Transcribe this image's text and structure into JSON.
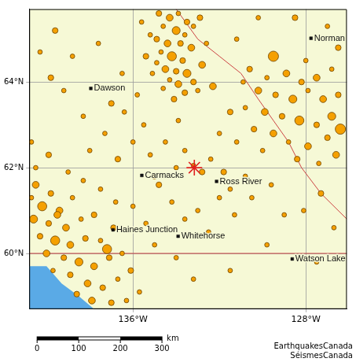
{
  "chart_data": {
    "type": "scatter",
    "xlim": [
      -140.8,
      -126.1
    ],
    "ylim": [
      58.7,
      65.7
    ],
    "xticks": [
      {
        "value": -136,
        "label": "136°W"
      },
      {
        "value": -128,
        "label": "128°W"
      }
    ],
    "yticks": [
      {
        "value": 60,
        "label": "60°N"
      },
      {
        "value": 62,
        "label": "62°N"
      },
      {
        "value": 64,
        "label": "64°N"
      }
    ],
    "grid": true,
    "tick_labels": true,
    "color": "#f5a000",
    "marker": "circle",
    "events": [
      [
        -134.8,
        65.6,
        2.5
      ],
      [
        -134.3,
        65.5,
        3
      ],
      [
        -133.9,
        65.6,
        2
      ],
      [
        -133.5,
        65.4,
        2.5
      ],
      [
        -134.6,
        65.3,
        2
      ],
      [
        -134.0,
        65.2,
        3.5
      ],
      [
        -133.6,
        65.1,
        2
      ],
      [
        -133.2,
        65.3,
        2
      ],
      [
        -134.9,
        65.0,
        2.5
      ],
      [
        -134.4,
        64.9,
        3
      ],
      [
        -133.8,
        64.9,
        2.5
      ],
      [
        -133.3,
        64.8,
        3
      ],
      [
        -134.7,
        64.7,
        2
      ],
      [
        -134.2,
        64.6,
        4
      ],
      [
        -133.7,
        64.5,
        2.5
      ],
      [
        -134.9,
        64.45,
        2
      ],
      [
        -134.5,
        64.3,
        3
      ],
      [
        -134.0,
        64.25,
        2.5
      ],
      [
        -133.5,
        64.2,
        3.5
      ],
      [
        -134.3,
        64.05,
        2
      ],
      [
        -133.9,
        63.95,
        3
      ],
      [
        -133.2,
        64.0,
        2.5
      ],
      [
        -134.6,
        63.85,
        2
      ],
      [
        -133.6,
        63.75,
        2.5
      ],
      [
        -132.8,
        64.4,
        3
      ],
      [
        -132.6,
        64.9,
        2
      ],
      [
        -135.2,
        65.1,
        2
      ],
      [
        -135.4,
        64.6,
        2.5
      ],
      [
        -135.1,
        64.2,
        2
      ],
      [
        -132.9,
        65.5,
        2.5
      ],
      [
        -135.6,
        65.4,
        2
      ],
      [
        -133.0,
        63.8,
        2
      ],
      [
        -134.1,
        63.6,
        2.5
      ],
      [
        -132.3,
        63.9,
        3
      ],
      [
        -129.5,
        64.6,
        4.5
      ],
      [
        -130.6,
        64.3,
        2.5
      ],
      [
        -129.8,
        64.1,
        2
      ],
      [
        -128.9,
        64.2,
        3
      ],
      [
        -128.2,
        64.0,
        2.5
      ],
      [
        -127.5,
        64.1,
        3
      ],
      [
        -126.8,
        64.3,
        2
      ],
      [
        -130.2,
        63.8,
        3
      ],
      [
        -129.4,
        63.7,
        2.5
      ],
      [
        -128.6,
        63.6,
        3.5
      ],
      [
        -127.9,
        63.8,
        2
      ],
      [
        -127.2,
        63.6,
        3
      ],
      [
        -126.5,
        63.7,
        2.5
      ],
      [
        -130.8,
        63.4,
        2
      ],
      [
        -129.9,
        63.3,
        3
      ],
      [
        -129.1,
        63.2,
        2.5
      ],
      [
        -128.3,
        63.1,
        4
      ],
      [
        -127.5,
        63.0,
        2.5
      ],
      [
        -126.8,
        63.2,
        3.5
      ],
      [
        -130.4,
        62.9,
        2.5
      ],
      [
        -129.5,
        62.8,
        3
      ],
      [
        -128.8,
        62.6,
        2
      ],
      [
        -127.9,
        62.5,
        3
      ],
      [
        -127.0,
        62.7,
        2.5
      ],
      [
        -126.4,
        62.9,
        4.5
      ],
      [
        -130.0,
        62.4,
        2
      ],
      [
        -128.4,
        62.2,
        2.5
      ],
      [
        -127.4,
        62.1,
        2
      ],
      [
        -126.6,
        62.3,
        3
      ],
      [
        -131.2,
        62.6,
        2
      ],
      [
        -128.0,
        64.5,
        2
      ],
      [
        -126.5,
        64.8,
        2.5
      ],
      [
        -127.0,
        65.3,
        2
      ],
      [
        -128.5,
        65.5,
        2.5
      ],
      [
        -133.2,
        62.05,
        2
      ],
      [
        -132.8,
        61.9,
        2.5
      ],
      [
        -132.4,
        62.2,
        2
      ],
      [
        -133.6,
        62.4,
        2
      ],
      [
        -131.8,
        61.9,
        2.5
      ],
      [
        -131.5,
        61.5,
        2
      ],
      [
        -132.0,
        61.3,
        2
      ],
      [
        -130.8,
        61.8,
        2
      ],
      [
        -134.0,
        62.0,
        2
      ],
      [
        -134.8,
        61.6,
        2.5
      ],
      [
        -135.2,
        62.3,
        2
      ],
      [
        -136.0,
        62.6,
        2
      ],
      [
        -135.5,
        63.0,
        2
      ],
      [
        -136.7,
        62.2,
        2.5
      ],
      [
        -137.3,
        62.8,
        2
      ],
      [
        -138.0,
        62.4,
        2
      ],
      [
        -136.4,
        63.3,
        2
      ],
      [
        -137.0,
        63.5,
        2.5
      ],
      [
        -138.3,
        63.2,
        2
      ],
      [
        -139.2,
        63.8,
        2
      ],
      [
        -139.8,
        64.1,
        2.5
      ],
      [
        -138.8,
        64.6,
        2
      ],
      [
        -137.6,
        64.9,
        2
      ],
      [
        -136.5,
        64.2,
        2
      ],
      [
        -135.8,
        63.7,
        2
      ],
      [
        -139.6,
        65.2,
        2.5
      ],
      [
        -140.3,
        64.7,
        2
      ],
      [
        -133.0,
        61.0,
        2
      ],
      [
        -134.2,
        61.2,
        2
      ],
      [
        -133.6,
        60.8,
        2
      ],
      [
        -132.5,
        60.5,
        2
      ],
      [
        -131.3,
        60.9,
        2
      ],
      [
        -130.5,
        61.3,
        2
      ],
      [
        -129.6,
        61.6,
        2
      ],
      [
        -129.0,
        60.9,
        2
      ],
      [
        -128.1,
        61.0,
        2
      ],
      [
        -127.3,
        61.4,
        2.5
      ],
      [
        -126.7,
        60.6,
        2
      ],
      [
        -129.8,
        60.2,
        2
      ],
      [
        -127.5,
        59.8,
        2
      ],
      [
        -131.5,
        59.6,
        2
      ],
      [
        -133.2,
        59.4,
        2
      ],
      [
        -134.0,
        59.9,
        2
      ],
      [
        -135.0,
        60.2,
        2
      ],
      [
        -135.4,
        60.7,
        2
      ],
      [
        -136.0,
        61.1,
        2
      ],
      [
        -135.0,
        61.8,
        2.5
      ],
      [
        -134.5,
        62.6,
        2
      ],
      [
        -133.9,
        63.1,
        2
      ],
      [
        -132.0,
        62.8,
        2
      ],
      [
        -131.5,
        63.3,
        2.5
      ],
      [
        -130.9,
        64.0,
        2
      ],
      [
        -131.2,
        65.0,
        2
      ],
      [
        -130.2,
        65.5,
        2
      ],
      [
        -140.5,
        61.6,
        3
      ],
      [
        -139.8,
        61.4,
        2.5
      ],
      [
        -140.2,
        61.1,
        4
      ],
      [
        -139.4,
        61.0,
        3
      ],
      [
        -138.8,
        61.3,
        2
      ],
      [
        -140.6,
        60.8,
        3.5
      ],
      [
        -139.9,
        60.7,
        2.5
      ],
      [
        -139.1,
        60.6,
        3
      ],
      [
        -138.4,
        60.8,
        2
      ],
      [
        -137.8,
        60.9,
        2.5
      ],
      [
        -140.3,
        60.4,
        2.5
      ],
      [
        -139.6,
        60.3,
        4
      ],
      [
        -138.9,
        60.2,
        3
      ],
      [
        -138.2,
        60.35,
        2.5
      ],
      [
        -137.5,
        60.3,
        2
      ],
      [
        -136.9,
        60.6,
        2.5
      ],
      [
        -140.0,
        60.0,
        3
      ],
      [
        -139.2,
        59.9,
        2.5
      ],
      [
        -138.5,
        59.8,
        3.5
      ],
      [
        -137.8,
        59.7,
        3
      ],
      [
        -137.1,
        59.9,
        2.5
      ],
      [
        -136.5,
        60.0,
        2
      ],
      [
        -139.7,
        59.6,
        2
      ],
      [
        -138.9,
        59.5,
        2.5
      ],
      [
        -138.1,
        59.3,
        3
      ],
      [
        -137.4,
        59.2,
        2.5
      ],
      [
        -136.7,
        59.4,
        2
      ],
      [
        -136.1,
        59.6,
        2.5
      ],
      [
        -137.9,
        58.9,
        3
      ],
      [
        -137.0,
        58.85,
        2.5
      ],
      [
        -136.3,
        58.9,
        2
      ],
      [
        -135.7,
        59.1,
        2
      ],
      [
        -138.6,
        59.05,
        2.5
      ],
      [
        -140.5,
        62.0,
        2
      ],
      [
        -139.9,
        62.3,
        2.5
      ],
      [
        -140.7,
        62.6,
        2
      ],
      [
        -139.0,
        61.9,
        2
      ],
      [
        -138.3,
        61.7,
        2
      ],
      [
        -137.5,
        61.5,
        2
      ],
      [
        -136.8,
        61.2,
        2
      ],
      [
        -137.2,
        60.1,
        4
      ],
      [
        -139.5,
        60.9,
        3
      ],
      [
        -140.7,
        61.3,
        2
      ]
    ],
    "epicenter": {
      "lon": -133.16,
      "lat": 62.0,
      "color": "#e02020",
      "marker": "star"
    },
    "places": [
      {
        "name": "Norman",
        "lon": -127.76,
        "lat": 65.02
      },
      {
        "name": "Dawson",
        "lon": -137.95,
        "lat": 63.85
      },
      {
        "name": "Carmacks",
        "lon": -135.59,
        "lat": 61.82
      },
      {
        "name": "Ross River",
        "lon": -132.13,
        "lat": 61.68
      },
      {
        "name": "Haines Junction",
        "lon": -136.92,
        "lat": 60.55
      },
      {
        "name": "Whitehorse",
        "lon": -133.91,
        "lat": 60.4
      },
      {
        "name": "Watson Lake",
        "lon": -128.63,
        "lat": 59.87
      }
    ],
    "water": [
      [
        [
          -140.8,
          59.7
        ],
        [
          -140.0,
          59.7
        ],
        [
          -139.3,
          59.3
        ],
        [
          -138.5,
          59.0
        ],
        [
          -137.8,
          58.7
        ],
        [
          -140.8,
          58.7
        ]
      ]
    ],
    "boundaries": [
      [
        [
          -140.8,
          60.0
        ],
        [
          -126.1,
          60.0
        ]
      ],
      [
        [
          -134.0,
          65.7
        ],
        [
          -133.0,
          65.0
        ],
        [
          -132.0,
          64.6
        ],
        [
          -131.0,
          64.2
        ],
        [
          -130.2,
          63.6
        ],
        [
          -129.5,
          63.1
        ],
        [
          -128.8,
          62.6
        ],
        [
          -128.2,
          62.0
        ],
        [
          -127.3,
          61.4
        ],
        [
          -126.1,
          60.8
        ]
      ]
    ],
    "scale_bar": {
      "ticks": [
        0,
        100,
        200,
        300
      ],
      "unit": "km"
    },
    "credits": [
      "EarthquakesCanada",
      "SéismesCanada"
    ]
  }
}
